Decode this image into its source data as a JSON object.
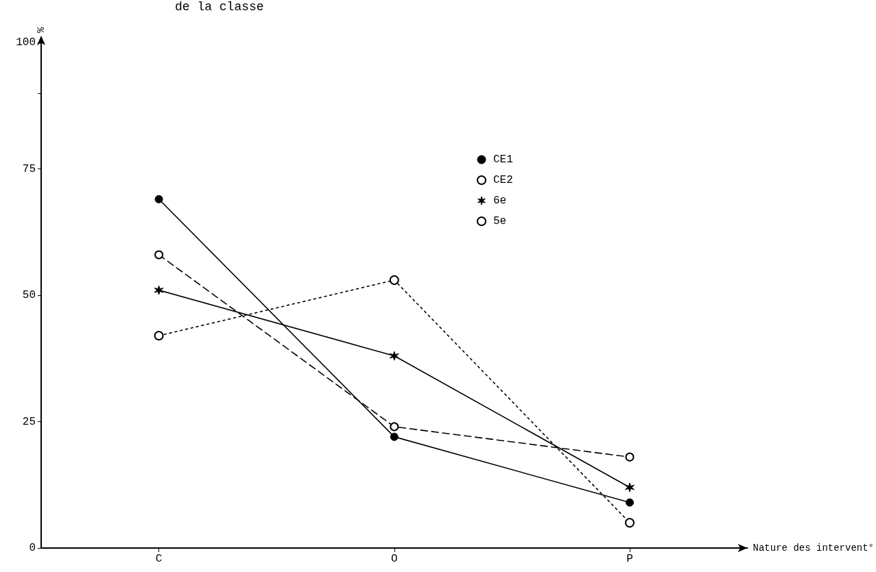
{
  "chart_data": {
    "type": "line",
    "title": "de la classe",
    "xlabel": "Nature des intervent°",
    "ylabel": "%",
    "categories": [
      "C",
      "O",
      "P"
    ],
    "series": [
      {
        "name": "CE1",
        "color": "#000000",
        "marker": "circle",
        "line_style": "solid",
        "values": [
          69,
          22,
          9
        ]
      },
      {
        "name": "CE2",
        "color": "#000000",
        "marker": "circle-open",
        "line_style": "dashed",
        "values": [
          58,
          24,
          18
        ]
      },
      {
        "name": "6e",
        "color": "#000000",
        "marker": "cross",
        "line_style": "solid",
        "values": [
          51,
          38,
          12
        ]
      },
      {
        "name": "5e",
        "color": "#000000",
        "marker": "circle-double",
        "line_style": "dotted",
        "values": [
          42,
          53,
          5
        ]
      }
    ],
    "ylim": [
      0,
      100
    ],
    "yticks": [
      0,
      25,
      50,
      75,
      {
        "value": 90,
        "label": null
      },
      100
    ],
    "grid": false,
    "legend": "top right"
  }
}
